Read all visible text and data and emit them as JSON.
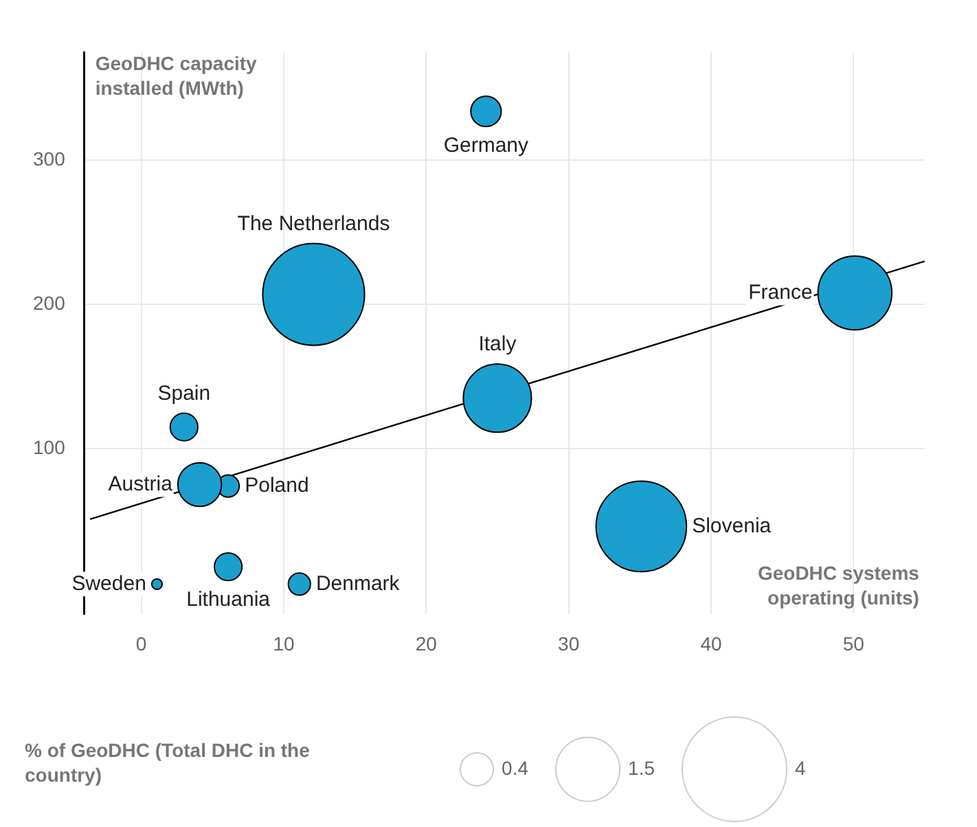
{
  "chart_data": {
    "type": "bubble",
    "xlabel": "GeoDHC systems operating (units)",
    "ylabel": "GeoDHC capacity installed (MWth)",
    "legend_title": "% of GeoDHC (Total DHC in the country)",
    "size_legend": [
      0.4,
      1.5,
      4
    ],
    "xlim": [
      -4,
      55
    ],
    "ylim": [
      -15,
      375
    ],
    "xticks": [
      0,
      10,
      20,
      30,
      40,
      50
    ],
    "yticks": [
      100,
      200,
      300
    ],
    "grid": true,
    "series": [
      {
        "name": "Germany",
        "color": "#1a9fcf",
        "x": [
          24.2
        ],
        "values": [
          334
        ],
        "sizes": [
          0.34
        ]
      },
      {
        "name": "The Netherlands",
        "color": "#1a9fcf",
        "x": [
          12.1
        ],
        "values": [
          207
        ],
        "sizes": [
          3.8
        ]
      },
      {
        "name": "France",
        "color": "#1a9fcf",
        "x": [
          50.1
        ],
        "values": [
          208
        ],
        "sizes": [
          2.0
        ]
      },
      {
        "name": "Italy",
        "color": "#1a9fcf",
        "x": [
          25
        ],
        "values": [
          135
        ],
        "sizes": [
          1.7
        ]
      },
      {
        "name": "Spain",
        "color": "#1a9fcf",
        "x": [
          3
        ],
        "values": [
          115
        ],
        "sizes": [
          0.28
        ]
      },
      {
        "name": "Austria",
        "color": "#1a9fcf",
        "x": [
          4.1
        ],
        "values": [
          75
        ],
        "sizes": [
          0.7
        ]
      },
      {
        "name": "Poland",
        "color": "#1a9fcf",
        "x": [
          6.1
        ],
        "values": [
          74
        ],
        "sizes": [
          0.18
        ]
      },
      {
        "name": "Slovenia",
        "color": "#1a9fcf",
        "x": [
          35.1
        ],
        "values": [
          46
        ],
        "sizes": [
          3.0
        ]
      },
      {
        "name": "Lithuania",
        "color": "#1a9fcf",
        "x": [
          6.1
        ],
        "values": [
          18
        ],
        "sizes": [
          0.28
        ]
      },
      {
        "name": "Denmark",
        "color": "#1a9fcf",
        "x": [
          11.1
        ],
        "values": [
          6
        ],
        "sizes": [
          0.18
        ]
      },
      {
        "name": "Sweden",
        "color": "#1a9fcf",
        "x": [
          1.1
        ],
        "values": [
          6
        ],
        "sizes": [
          0.04
        ]
      },
      {
        "type": "line",
        "color": "#000000",
        "x": [
          -3.6,
          55
        ],
        "values": [
          51,
          230
        ]
      }
    ]
  }
}
